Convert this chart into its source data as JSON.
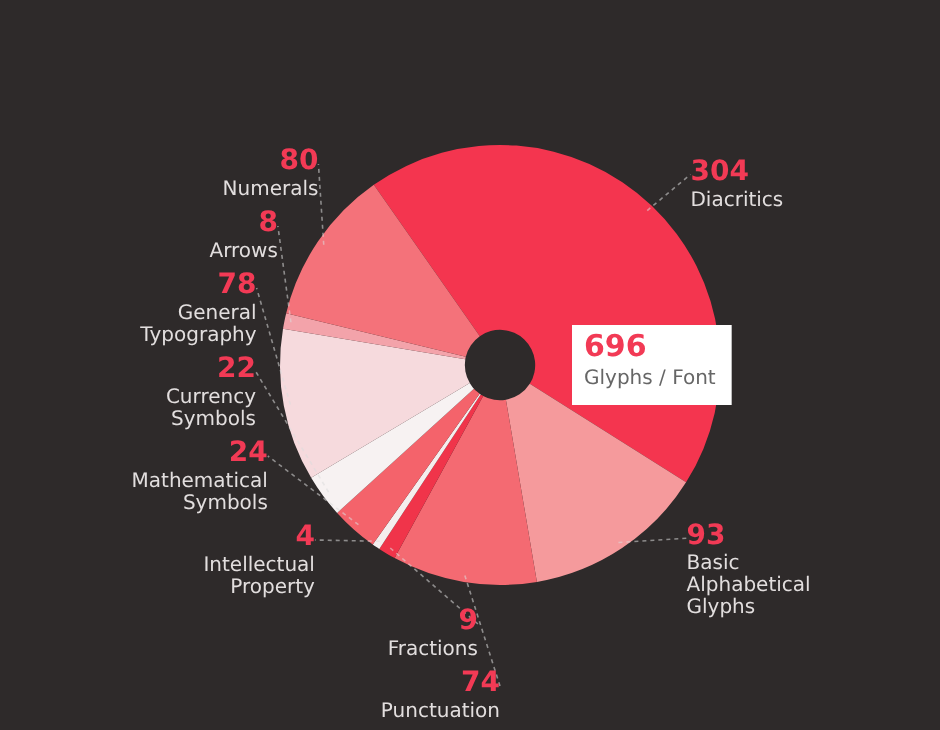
{
  "chart_data": {
    "type": "donut",
    "categories": [
      "Diacritics",
      "Basic Alphabetical Glyphs",
      "Punctuation",
      "Fractions",
      "Intellectual Property",
      "Mathematical Symbols",
      "Currency Symbols",
      "General Typography",
      "Arrows",
      "Numerals"
    ],
    "values": [
      304,
      93,
      74,
      9,
      4,
      24,
      22,
      78,
      8,
      80
    ],
    "colors": [
      "#f4354f",
      "#f59a9c",
      "#f46a72",
      "#f0344a",
      "#f5eeee",
      "#f4636b",
      "#f7f2f2",
      "#f6dadd",
      "#f3a3aa",
      "#f4727a"
    ],
    "data_labels": true,
    "legend": false,
    "annotations": [
      "696",
      "Glyphs / Font"
    ]
  }
}
